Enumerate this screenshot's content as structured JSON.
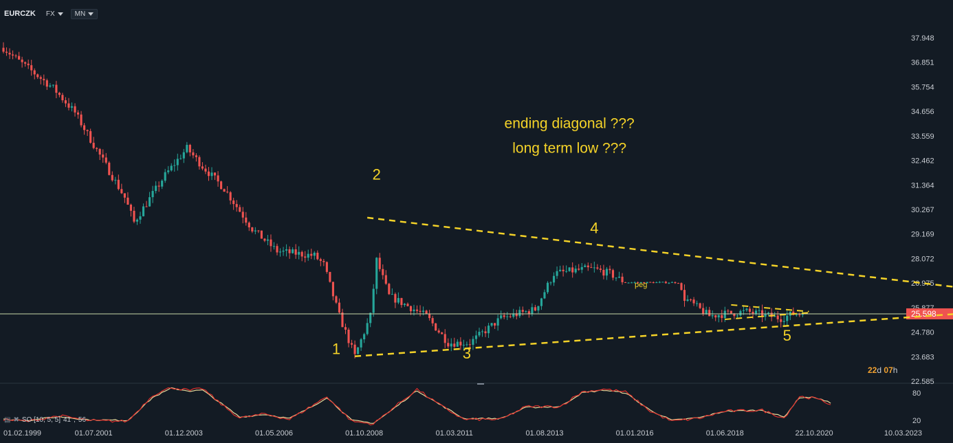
{
  "toolbar": {
    "symbol": "EURCZK",
    "market": "FX",
    "interval": "MN"
  },
  "oscillator": {
    "legend": "SO [10, 5, 5]",
    "value_k": "41",
    "value_d": "56",
    "levels": [
      80,
      20
    ]
  },
  "countdown": {
    "days": "22",
    "days_unit": "d",
    "hours": "07",
    "hours_unit": "h"
  },
  "colors": {
    "up": "#26a69a",
    "down": "#ef5350",
    "trendline": "#f5d328",
    "annotation": "#f5d328",
    "current_line": "#c8d8a8",
    "price_tag": "#ef5350",
    "osc_k": "#e0302c",
    "osc_d": "#e8d89a"
  },
  "chart_data": {
    "type": "candlestick",
    "symbol": "EURCZK",
    "interval": "MN",
    "current_price": 25.598,
    "y_ticks": [
      37.948,
      36.851,
      35.754,
      34.656,
      33.559,
      32.462,
      31.364,
      30.267,
      29.169,
      28.072,
      26.975,
      25.877,
      24.78,
      23.683,
      22.585
    ],
    "y_range": [
      22.585,
      37.948
    ],
    "x_ticks": [
      "01.02.1999",
      "01.07.2001",
      "01.12.2003",
      "01.05.2006",
      "01.10.2008",
      "01.03.2011",
      "01.08.2013",
      "01.01.2016",
      "01.06.2018",
      "22.10.2020",
      "10.03.2023"
    ],
    "price_anchors": [
      [
        "1999-02",
        37.5
      ],
      [
        "1999-07",
        36.9
      ],
      [
        "2000-06",
        35.7
      ],
      [
        "2001-01",
        34.6
      ],
      [
        "2001-06",
        33.4
      ],
      [
        "2002-05",
        30.8
      ],
      [
        "2002-08",
        29.7
      ],
      [
        "2003-06",
        31.8
      ],
      [
        "2004-01",
        33.0
      ],
      [
        "2004-06",
        32.2
      ],
      [
        "2005-01",
        31.2
      ],
      [
        "2005-10",
        29.4
      ],
      [
        "2006-06",
        28.4
      ],
      [
        "2007-06",
        28.2
      ],
      [
        "2007-09",
        27.8
      ],
      [
        "2008-02",
        25.5
      ],
      [
        "2008-07",
        23.7
      ],
      [
        "2008-12",
        25.5
      ],
      [
        "2009-02",
        28.0
      ],
      [
        "2009-06",
        26.4
      ],
      [
        "2010-06",
        25.5
      ],
      [
        "2011-01",
        24.3
      ],
      [
        "2011-08",
        24.3
      ],
      [
        "2012-06",
        25.4
      ],
      [
        "2013-05",
        25.8
      ],
      [
        "2013-11",
        27.4
      ],
      [
        "2014-09",
        27.6
      ],
      [
        "2014-12",
        27.6
      ],
      [
        "2015-05",
        27.4
      ],
      [
        "2015-10",
        27.0
      ],
      [
        "2017-03",
        27.0
      ],
      [
        "2017-05",
        26.3
      ],
      [
        "2018-01",
        25.5
      ],
      [
        "2018-06",
        25.6
      ],
      [
        "2019-01",
        25.7
      ],
      [
        "2019-12",
        25.4
      ],
      [
        "2020-04",
        25.6
      ],
      [
        "2020-07",
        25.6
      ]
    ],
    "trendlines": [
      {
        "name": "upper",
        "from": [
          "2008-11",
          29.9
        ],
        "to": [
          "2024-08",
          26.8
        ]
      },
      {
        "name": "lower",
        "from": [
          "2008-07",
          23.7
        ],
        "to": [
          "2024-09",
          25.6
        ]
      },
      {
        "name": "small-upper",
        "from": [
          "2018-08",
          26.0
        ],
        "to": [
          "2020-09",
          25.7
        ]
      },
      {
        "name": "small-lower",
        "from": [
          "2018-06",
          25.35
        ],
        "to": [
          "2020-09",
          25.65
        ]
      }
    ],
    "annotations": [
      {
        "text": "1",
        "at": [
          "2008-01",
          23.8
        ]
      },
      {
        "text": "2",
        "at": [
          "2009-02",
          31.6
        ]
      },
      {
        "text": "3",
        "at": [
          "2011-07",
          23.6
        ]
      },
      {
        "text": "4",
        "at": [
          "2014-12",
          29.2
        ]
      },
      {
        "text": "5",
        "at": [
          "2020-02",
          24.4
        ]
      },
      {
        "text": "ending diagonal ???",
        "at": [
          "2014-04",
          33.9
        ]
      },
      {
        "text": "long term low ???",
        "at": [
          "2014-04",
          32.8
        ]
      },
      {
        "text": "peg",
        "at": [
          "2016-03",
          26.8
        ]
      }
    ],
    "oscillator": {
      "name": "SO [10, 5, 5]",
      "k_anchors": [
        [
          "1999-02",
          22
        ],
        [
          "1999-10",
          18
        ],
        [
          "2000-08",
          30
        ],
        [
          "2001-06",
          19
        ],
        [
          "2002-06",
          18
        ],
        [
          "2003-02",
          75
        ],
        [
          "2003-08",
          92
        ],
        [
          "2004-02",
          85
        ],
        [
          "2004-06",
          90
        ],
        [
          "2005-01",
          50
        ],
        [
          "2005-06",
          25
        ],
        [
          "2006-02",
          34
        ],
        [
          "2006-10",
          22
        ],
        [
          "2007-06",
          55
        ],
        [
          "2007-10",
          72
        ],
        [
          "2008-06",
          18
        ],
        [
          "2009-01",
          12
        ],
        [
          "2009-06",
          40
        ],
        [
          "2010-03",
          88
        ],
        [
          "2010-10",
          55
        ],
        [
          "2011-06",
          22
        ],
        [
          "2012-06",
          22
        ],
        [
          "2013-02",
          50
        ],
        [
          "2014-01",
          50
        ],
        [
          "2014-08",
          82
        ],
        [
          "2015-03",
          88
        ],
        [
          "2015-10",
          82
        ],
        [
          "2016-06",
          40
        ],
        [
          "2017-01",
          18
        ],
        [
          "2017-10",
          25
        ],
        [
          "2018-06",
          40
        ],
        [
          "2019-06",
          42
        ],
        [
          "2020-01",
          25
        ],
        [
          "2020-06",
          72
        ],
        [
          "2020-11",
          68
        ],
        [
          "2021-04",
          55
        ]
      ],
      "d_anchors": [
        [
          "1999-02",
          22
        ],
        [
          "1999-10",
          20
        ],
        [
          "2000-08",
          28
        ],
        [
          "2001-06",
          21
        ],
        [
          "2002-06",
          20
        ],
        [
          "2003-02",
          70
        ],
        [
          "2003-08",
          90
        ],
        [
          "2004-02",
          84
        ],
        [
          "2004-06",
          86
        ],
        [
          "2005-01",
          52
        ],
        [
          "2005-06",
          27
        ],
        [
          "2006-02",
          33
        ],
        [
          "2006-10",
          24
        ],
        [
          "2007-06",
          53
        ],
        [
          "2007-10",
          70
        ],
        [
          "2008-06",
          20
        ],
        [
          "2009-01",
          14
        ],
        [
          "2009-06",
          38
        ],
        [
          "2010-03",
          85
        ],
        [
          "2010-10",
          56
        ],
        [
          "2011-06",
          24
        ],
        [
          "2012-06",
          24
        ],
        [
          "2013-02",
          48
        ],
        [
          "2014-01",
          50
        ],
        [
          "2014-08",
          80
        ],
        [
          "2015-03",
          86
        ],
        [
          "2015-10",
          80
        ],
        [
          "2016-06",
          42
        ],
        [
          "2017-01",
          20
        ],
        [
          "2017-10",
          26
        ],
        [
          "2018-06",
          40
        ],
        [
          "2019-06",
          42
        ],
        [
          "2020-01",
          27
        ],
        [
          "2020-06",
          70
        ],
        [
          "2020-11",
          70
        ],
        [
          "2021-04",
          58
        ]
      ]
    }
  }
}
